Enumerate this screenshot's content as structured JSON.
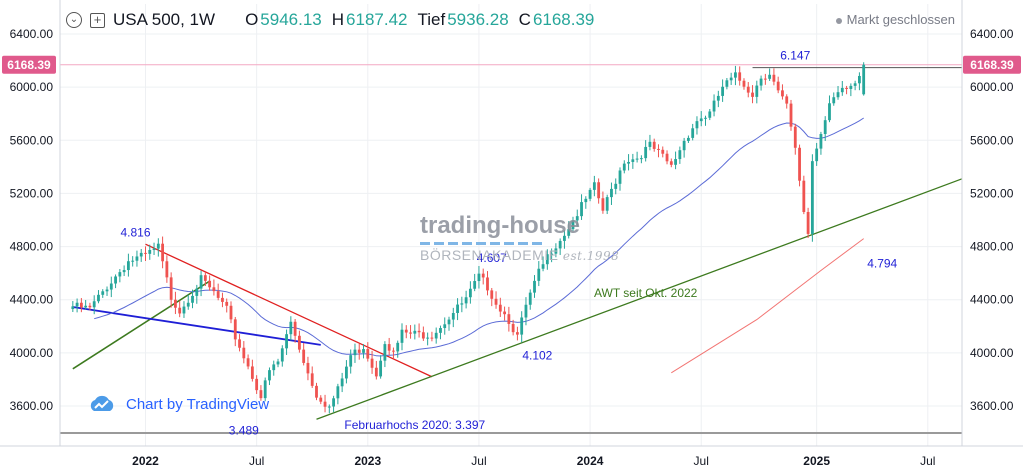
{
  "header": {
    "symbol": "USA 500, 1W",
    "open_label": "O",
    "open": "5946.13",
    "high_label": "H",
    "high": "6187.42",
    "low_label": "Tief",
    "low": "5936.28",
    "close_label": "C",
    "close": "6168.39",
    "status": "Markt geschlossen"
  },
  "watermark": {
    "text": "Chart by TradingView"
  },
  "logo": {
    "line1": "trading-house",
    "line2": "BÖRSENAKADEMIE",
    "line3": "est.1998"
  },
  "colors": {
    "up": "#26a69a",
    "down": "#ef5350",
    "price_tag": "#e05a8c",
    "ma_blue": "#5b6bd6",
    "ma_red": "#ef5350",
    "trend_green": "#3d7a1f",
    "trend_red": "#e02020",
    "trend_blue": "#1f1fd6",
    "annotation_blue": "#1f1fd6"
  },
  "chart_data": {
    "type": "candlestick",
    "y_ticks": [
      "6400.00",
      "6000.00",
      "5600.00",
      "5200.00",
      "4800.00",
      "4400.00",
      "4000.00",
      "3600.00"
    ],
    "x_ticks": [
      "2022",
      "Jul",
      "2023",
      "Jul",
      "2024",
      "Jul",
      "2025",
      "Jul"
    ],
    "ylim": [
      3380,
      6540
    ],
    "xlim": [
      "2021-08-16",
      "2025-09-01"
    ],
    "grid": true,
    "last_price": "6168.39",
    "start": "2021-09-06",
    "weeks": 199,
    "anchors": [
      [
        0,
        4350
      ],
      [
        4,
        4330
      ],
      [
        8,
        4500
      ],
      [
        13,
        4690
      ],
      [
        17,
        4730
      ],
      [
        20,
        4795
      ],
      [
        23,
        4420
      ],
      [
        25,
        4320
      ],
      [
        30,
        4550
      ],
      [
        33,
        4450
      ],
      [
        36,
        4320
      ],
      [
        38,
        4120
      ],
      [
        41,
        3900
      ],
      [
        44,
        3670
      ],
      [
        46,
        3860
      ],
      [
        48,
        3930
      ],
      [
        51,
        4230
      ],
      [
        55,
        3850
      ],
      [
        57,
        3690
      ],
      [
        60,
        3590
      ],
      [
        62,
        3720
      ],
      [
        65,
        3980
      ],
      [
        68,
        4050
      ],
      [
        71,
        3840
      ],
      [
        73,
        4100
      ],
      [
        75,
        3990
      ],
      [
        77,
        4150
      ],
      [
        80,
        4140
      ],
      [
        84,
        4140
      ],
      [
        88,
        4270
      ],
      [
        92,
        4400
      ],
      [
        95,
        4570
      ],
      [
        97,
        4500
      ],
      [
        99,
        4380
      ],
      [
        102,
        4250
      ],
      [
        104,
        4120
      ],
      [
        106,
        4350
      ],
      [
        109,
        4600
      ],
      [
        112,
        4780
      ],
      [
        115,
        4900
      ],
      [
        119,
        5100
      ],
      [
        122,
        5250
      ],
      [
        124,
        5070
      ],
      [
        127,
        5300
      ],
      [
        129,
        5450
      ],
      [
        132,
        5470
      ],
      [
        135,
        5560
      ],
      [
        138,
        5470
      ],
      [
        140,
        5400
      ],
      [
        143,
        5600
      ],
      [
        146,
        5750
      ],
      [
        149,
        5800
      ],
      [
        152,
        6000
      ],
      [
        155,
        6080
      ],
      [
        157,
        6020
      ],
      [
        159,
        5950
      ],
      [
        161,
        6080
      ],
      [
        163,
        6110
      ],
      [
        165,
        5960
      ],
      [
        167,
        5850
      ],
      [
        169,
        5520
      ],
      [
        171,
        5070
      ],
      [
        172,
        4900
      ],
      [
        173,
        5450
      ],
      [
        175,
        5660
      ],
      [
        177,
        5900
      ],
      [
        179,
        5950
      ],
      [
        181,
        5970
      ],
      [
        183,
        6000
      ],
      [
        185,
        6168
      ]
    ],
    "ma_blue_start": 4220,
    "ma_red": [
      [
        140,
        3850
      ],
      [
        160,
        4250
      ],
      [
        175,
        4620
      ],
      [
        185,
        4860
      ]
    ],
    "trendlines": [
      {
        "name": "green-support-2022",
        "from": [
          "2021-09-06",
          3880
        ],
        "to": [
          "2022-04-18",
          4540
        ]
      },
      {
        "name": "red-resistance",
        "from": [
          "2022-01-03",
          4818
        ],
        "to": [
          "2023-04-17",
          3820
        ]
      },
      {
        "name": "blue-line",
        "from": [
          "2021-09-06",
          4345
        ],
        "to": [
          "2022-10-17",
          4060
        ]
      },
      {
        "name": "awt-trend",
        "from": [
          "2022-10-10",
          3500
        ],
        "to": [
          "2025-09-01",
          5310
        ]
      },
      {
        "name": "resistance-6147",
        "from": [
          "2024-09-23",
          6147
        ],
        "to": [
          "2025-09-01",
          6147
        ]
      },
      {
        "name": "february-highs-2020",
        "from": [
          "2021-08-16",
          3397
        ],
        "to": [
          "2025-09-01",
          3397
        ]
      }
    ],
    "annotations": [
      {
        "text": "4.816",
        "date": "2022-01-03",
        "value": 4816
      },
      {
        "text": "3.489",
        "date": "2022-06-13",
        "value": 3489
      },
      {
        "text": "4.607",
        "date": "2023-07-24",
        "value": 4607
      },
      {
        "text": "4.102",
        "date": "2023-10-23",
        "value": 4102
      },
      {
        "text": "6.147",
        "date": "2024-12-02",
        "value": 6147
      },
      {
        "text": "4.794",
        "date": "2025-04-07",
        "value": 4794
      },
      {
        "text": "AWT seit Okt. 2022",
        "date": "2024-04-01",
        "value": 4420
      },
      {
        "text": "Februarhochs 2020: 3.397",
        "date": "2023-03-20",
        "value": 3397
      }
    ]
  }
}
